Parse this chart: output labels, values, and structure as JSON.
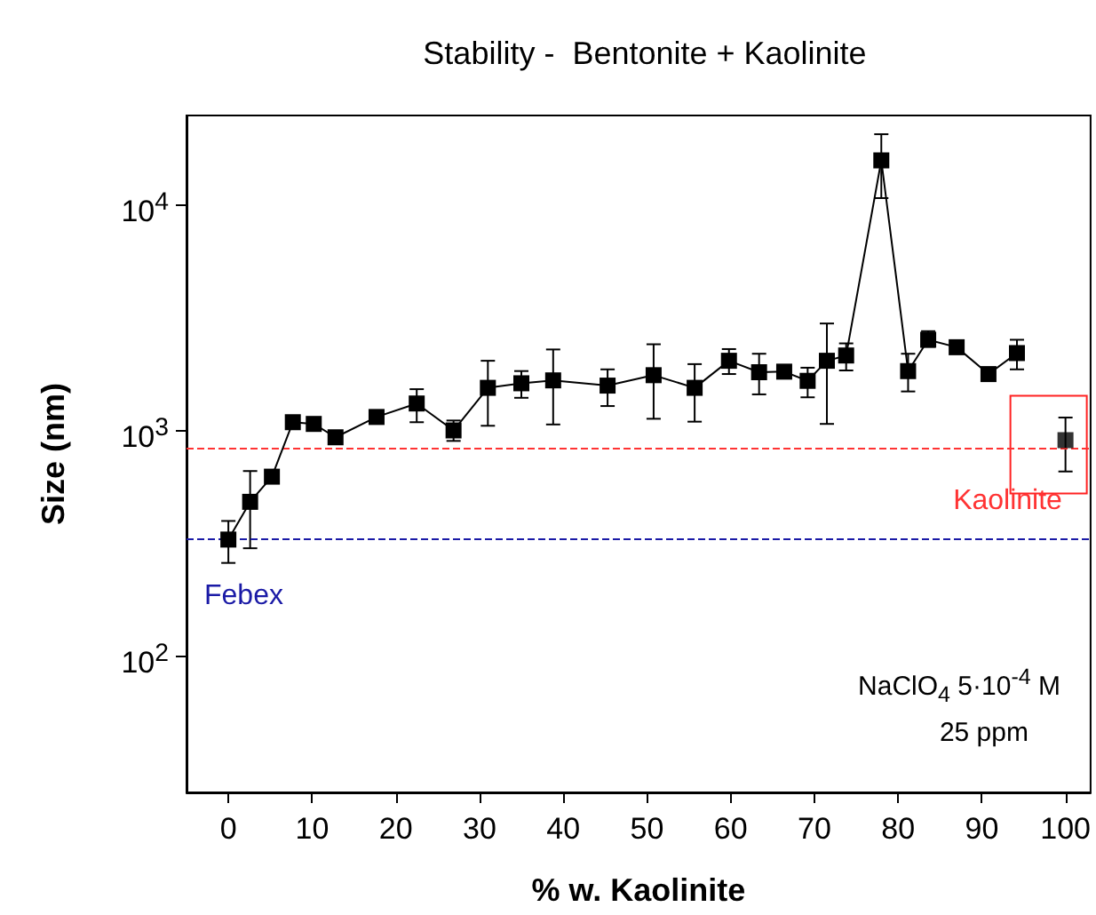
{
  "chart_data": {
    "type": "line",
    "title": "Stability -  Bentonite + Kaolinite",
    "xlabel": "% w. Kaolinite",
    "ylabel": "Size (nm)",
    "annotations": [
      "NaClO$_{4}$ 5·10$^{-4}$ M",
      "25 ppm"
    ],
    "log": "y",
    "marker": "square",
    "xlim": [
      -5,
      103
    ],
    "xticks": [
      0,
      10,
      20,
      30,
      40,
      50,
      60,
      70,
      80,
      90,
      100
    ],
    "ylim": [
      25,
      25000
    ],
    "yticks": [
      {
        "value": 100,
        "label": "10$^{2}$"
      },
      {
        "value": 1000,
        "label": "10$^{3}$"
      },
      {
        "value": 10000,
        "label": "10$^{4}$"
      }
    ],
    "ref_lines": [
      {
        "axis": "y",
        "value": 330,
        "label": "Febex",
        "color": "#1a1aa6",
        "line_style": "dashed"
      },
      {
        "axis": "y",
        "value": 841,
        "label": "Kaolinite",
        "color": "#ff3333",
        "line_style": "dashed"
      }
    ],
    "series": [
      {
        "color": "#000000",
        "x": [
          0,
          2.6,
          5.2,
          7.7,
          10.2,
          12.8,
          17.7,
          22.5,
          26.9,
          31.0,
          35.0,
          38.8,
          45.3,
          50.8,
          55.7,
          59.8,
          63.4,
          66.4,
          69.2,
          71.5,
          73.8,
          78.0,
          81.2,
          83.6,
          87.0,
          90.8,
          94.2
        ],
        "values": [
          330,
          485,
          627,
          1093,
          1074,
          937,
          1153,
          1323,
          1005,
          1552,
          1626,
          1675,
          1588,
          1766,
          1552,
          2046,
          1820,
          1831,
          1667,
          2046,
          2159,
          15810,
          1841,
          2535,
          2349,
          1786,
          2213
        ],
        "errors": [
          [
            260,
            399
          ],
          [
            302,
            664
          ],
          null,
          null,
          null,
          null,
          null,
          [
            1093,
            1531
          ],
          [
            903,
            1112
          ],
          [
            1054,
            2046
          ],
          [
            1402,
            1842
          ],
          [
            1068,
            2296
          ],
          [
            1289,
            1874
          ],
          [
            1132,
            2421
          ],
          [
            1099,
            1977
          ],
          [
            1787,
            2305
          ],
          [
            1452,
            2198
          ],
          null,
          [
            1409,
            1906
          ],
          [
            1074,
            2993
          ],
          [
            1854,
            2443
          ],
          [
            10760,
            20650
          ],
          [
            1496,
            2198
          ],
          [
            2360,
            2767
          ],
          null,
          null,
          [
            1874,
            2535
          ]
        ]
      },
      {
        "type": "scatter",
        "color": "#000000",
        "x": [
          100
        ],
        "values": [
          910
        ],
        "errors": [
          [
            661,
            1146
          ]
        ]
      }
    ]
  }
}
